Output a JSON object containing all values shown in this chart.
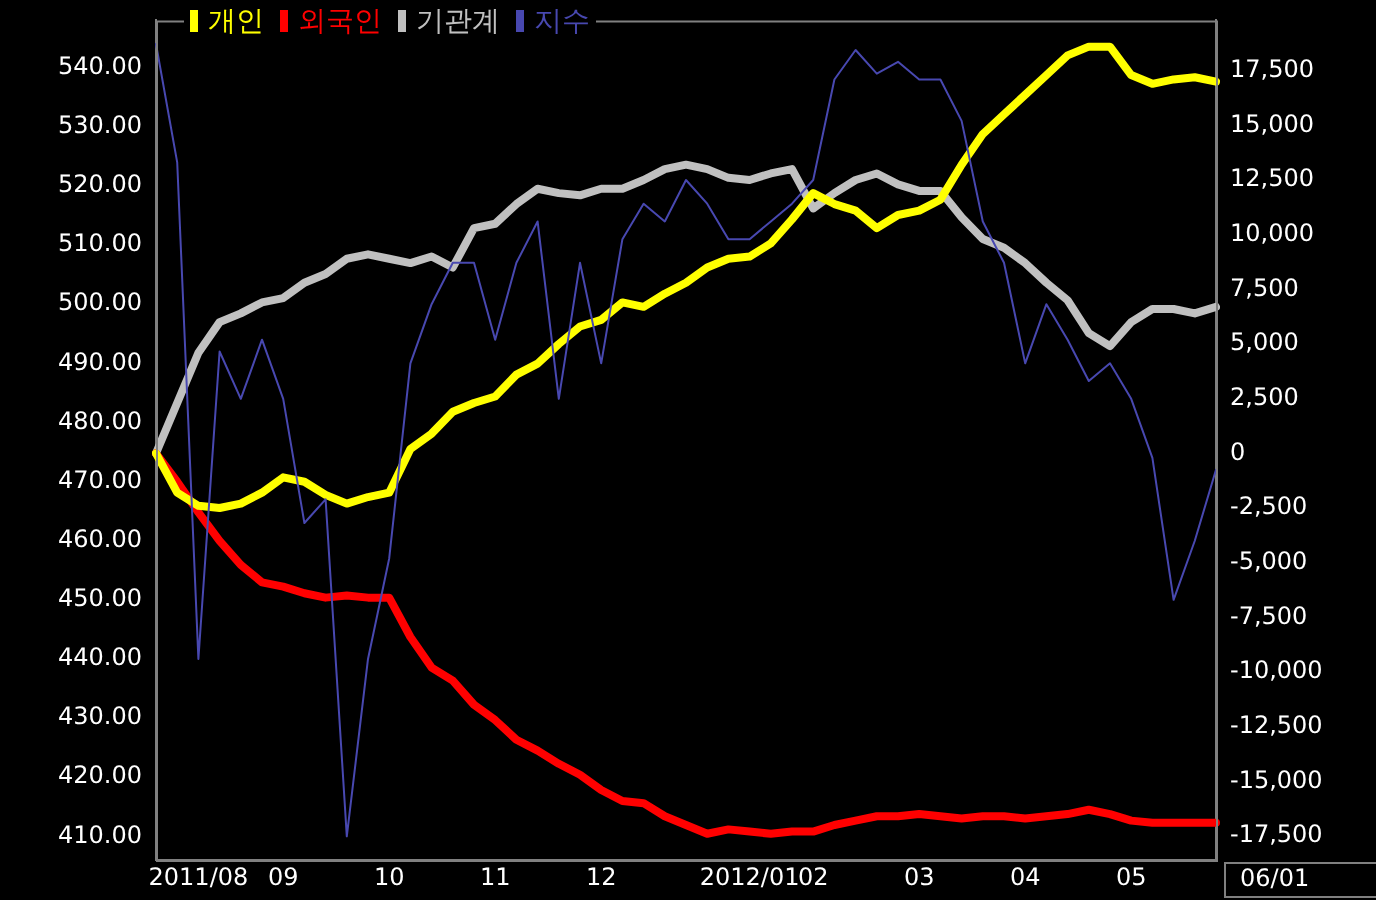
{
  "chart_data": {
    "type": "line",
    "categories": [
      null,
      null,
      "2011/08",
      null,
      null,
      null,
      "09",
      null,
      null,
      null,
      null,
      "10",
      null,
      null,
      null,
      null,
      "11",
      null,
      null,
      null,
      null,
      "12",
      null,
      null,
      null,
      null,
      null,
      null,
      "2012/01",
      null,
      null,
      "02",
      null,
      null,
      null,
      null,
      "03",
      null,
      null,
      null,
      null,
      "04",
      null,
      null,
      null,
      null,
      "05",
      null,
      null,
      null,
      null
    ],
    "series": [
      {
        "name": "개인",
        "color": "#ffff00",
        "axis": "y2",
        "values": [
          0,
          -1800,
          -2400,
          -2500,
          -2300,
          -1800,
          -1100,
          -1300,
          -1900,
          -2300,
          -2000,
          -1800,
          200,
          900,
          1900,
          2300,
          2600,
          3600,
          4100,
          5000,
          5800,
          6100,
          6900,
          6700,
          7300,
          7800,
          8500,
          8900,
          9000,
          9600,
          10700,
          11900,
          11400,
          11100,
          10300,
          10900,
          11100,
          11600,
          13200,
          14600,
          15500,
          16400,
          17300,
          18200,
          18600,
          18600,
          17300,
          16900,
          17100,
          17200,
          17000
        ]
      },
      {
        "name": "외국인",
        "color": "#ff0000",
        "axis": "y2",
        "values": [
          0,
          -1300,
          -2700,
          -4000,
          -5100,
          -5900,
          -6100,
          -6400,
          -6600,
          -6500,
          -6600,
          -6600,
          -8400,
          -9800,
          -10400,
          -11500,
          -12200,
          -13100,
          -13600,
          -14200,
          -14700,
          -15400,
          -15900,
          -16000,
          -16600,
          -17000,
          -17400,
          -17200,
          -17300,
          -17400,
          -17300,
          -17300,
          -17000,
          -16800,
          -16600,
          -16600,
          -16500,
          -16600,
          -16700,
          -16600,
          -16600,
          -16700,
          -16600,
          -16500,
          -16300,
          -16500,
          -16800,
          -16900,
          -16900,
          -16900,
          -16900
        ]
      },
      {
        "name": "기관계",
        "color": "#c0c0c0",
        "axis": "y2",
        "values": [
          0,
          2300,
          4600,
          6000,
          6400,
          6900,
          7100,
          7800,
          8200,
          8900,
          9100,
          8900,
          8700,
          9000,
          8500,
          10300,
          10500,
          11400,
          12100,
          11900,
          11800,
          12100,
          12100,
          12500,
          13000,
          13200,
          13000,
          12600,
          12500,
          12800,
          13000,
          11200,
          11900,
          12500,
          12800,
          12300,
          12000,
          12000,
          10800,
          9800,
          9400,
          8700,
          7800,
          7000,
          5500,
          4900,
          6000,
          6600,
          6600,
          6400,
          6700
        ]
      },
      {
        "name": "지수",
        "color": "#4848b0",
        "axis": "y",
        "values": [
          544,
          524,
          440,
          492,
          484,
          494,
          484,
          463,
          467,
          410,
          440,
          457,
          490,
          500,
          507,
          507,
          494,
          507,
          514,
          484,
          507,
          490,
          511,
          517,
          514,
          521,
          517,
          511,
          511,
          514,
          517,
          521,
          538,
          543,
          539,
          541,
          538,
          538,
          531,
          514,
          507,
          490,
          500,
          494,
          487,
          490,
          484,
          474,
          450,
          460,
          472
        ]
      }
    ],
    "ylim": [
      406,
      548
    ],
    "yticks": [
      {
        "value": 410,
        "label": "410.00"
      },
      {
        "value": 420,
        "label": "420.00"
      },
      {
        "value": 430,
        "label": "430.00"
      },
      {
        "value": 440,
        "label": "440.00"
      },
      {
        "value": 450,
        "label": "450.00"
      },
      {
        "value": 460,
        "label": "460.00"
      },
      {
        "value": 470,
        "label": "470.00"
      },
      {
        "value": 480,
        "label": "480.00"
      },
      {
        "value": 490,
        "label": "490.00"
      },
      {
        "value": 500,
        "label": "500.00"
      },
      {
        "value": 510,
        "label": "510.00"
      },
      {
        "value": 520,
        "label": "520.00"
      },
      {
        "value": 530,
        "label": "530.00"
      },
      {
        "value": 540,
        "label": "540.00"
      }
    ],
    "y2lim": [
      -18600,
      19800
    ],
    "y2ticks": [
      {
        "value": -17500,
        "label": "-17,500"
      },
      {
        "value": -15000,
        "label": "-15,000"
      },
      {
        "value": -12500,
        "label": "-12,500"
      },
      {
        "value": -10000,
        "label": "-10,000"
      },
      {
        "value": -7500,
        "label": "-7,500"
      },
      {
        "value": -5000,
        "label": "-5,000"
      },
      {
        "value": -2500,
        "label": "-2,500"
      },
      {
        "value": 0,
        "label": "0"
      },
      {
        "value": 2500,
        "label": "2,500"
      },
      {
        "value": 5000,
        "label": "5,000"
      },
      {
        "value": 7500,
        "label": "7,500"
      },
      {
        "value": 10000,
        "label": "10,000"
      },
      {
        "value": 12500,
        "label": "12,500"
      },
      {
        "value": 15000,
        "label": "15,000"
      },
      {
        "value": 17500,
        "label": "17,500"
      }
    ],
    "legend": "top left",
    "grid": false,
    "marker": "none",
    "annotations": [
      "06/01"
    ]
  }
}
